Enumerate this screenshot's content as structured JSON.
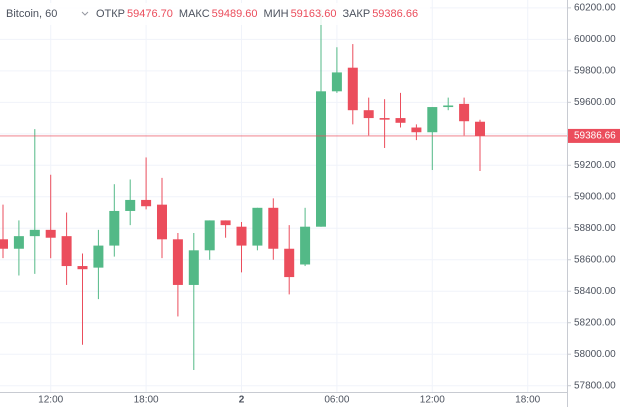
{
  "chart_data": {
    "type": "candlestick",
    "title": "Bitcoin, 60",
    "ohlc_legend": [
      {
        "name": "ОТКР",
        "value": {
          "value": 59476.7,
          "label": "59476.70"
        }
      },
      {
        "name": "МАКС",
        "value": {
          "value": 59489.6,
          "label": "59489.60"
        }
      },
      {
        "name": "МИН",
        "value": {
          "value": 59163.6,
          "label": "59163.60"
        }
      },
      {
        "name": "ЗАКР",
        "value": {
          "value": 59386.66,
          "label": "59386.66"
        }
      }
    ],
    "categories": [
      null,
      null,
      null,
      "12:00",
      null,
      null,
      null,
      null,
      null,
      "18:00",
      null,
      null,
      null,
      null,
      null,
      "2",
      null,
      null,
      null,
      null,
      null,
      "06:00",
      null,
      null,
      null,
      null,
      null,
      "12:00",
      null,
      null,
      null,
      null,
      null,
      "18:00",
      null,
      null
    ],
    "open": [
      58730,
      58670,
      58750,
      58790,
      58750,
      58560,
      58550,
      58690,
      58910,
      58980,
      58950,
      58730,
      58440,
      58660,
      58850,
      58810,
      58690,
      58930,
      58670,
      58570,
      58810,
      59670,
      59820,
      59550,
      59500,
      59500,
      59440,
      59410,
      59570,
      59590,
      59476.7,
      null,
      null,
      null,
      null,
      null
    ],
    "high": [
      58950,
      58850,
      59430,
      59140,
      58900,
      58640,
      58790,
      59080,
      59110,
      59250,
      59120,
      58770,
      58770,
      58850,
      58850,
      58840,
      58930,
      58990,
      58820,
      58930,
      60190,
      59950,
      59970,
      59630,
      59620,
      59660,
      59460,
      59570,
      59630,
      59630,
      59489.6,
      null,
      null,
      null,
      null,
      null
    ],
    "low": [
      58610,
      58500,
      58510,
      58610,
      58440,
      58060,
      58350,
      58620,
      58820,
      58920,
      58610,
      58240,
      57900,
      58600,
      58740,
      58520,
      58660,
      58600,
      58380,
      58560,
      58810,
      59660,
      59460,
      59390,
      59310,
      59440,
      59360,
      59170,
      59550,
      59390,
      59163.6,
      null,
      null,
      null,
      null,
      null
    ],
    "close": [
      58670,
      58750,
      58790,
      58740,
      58560,
      58540,
      58690,
      58910,
      58980,
      58940,
      58730,
      58440,
      58660,
      58850,
      58820,
      58690,
      58930,
      58670,
      58490,
      58810,
      59670,
      59790,
      59550,
      59500,
      59490,
      59470,
      59410,
      59570,
      59580,
      59480,
      59386.66,
      null,
      null,
      null,
      null,
      null
    ],
    "up_color": "#53b987",
    "down_color": "#eb4d5c",
    "price_line": {
      "value": 59386.66,
      "label": "59386.66"
    },
    "ylim": [
      57760,
      60250
    ],
    "yticks": [
      {
        "value": 57800,
        "label": "57800.00"
      },
      {
        "value": 58000,
        "label": "58000.00"
      },
      {
        "value": 58200,
        "label": "58200.00"
      },
      {
        "value": 58400,
        "label": "58400.00"
      },
      {
        "value": 58600,
        "label": "58600.00"
      },
      {
        "value": 58800,
        "label": "58800.00"
      },
      {
        "value": 59000,
        "label": "59000.00"
      },
      {
        "value": 59200,
        "label": "59200.00"
      },
      {
        "value": 59400,
        "label": "59400.00"
      },
      {
        "value": 59600,
        "label": "59600.00"
      },
      {
        "value": 59800,
        "label": "59800.00"
      },
      {
        "value": 60000,
        "label": "60000.00"
      },
      {
        "value": 60200,
        "label": "60200.00"
      }
    ],
    "grid": true
  }
}
